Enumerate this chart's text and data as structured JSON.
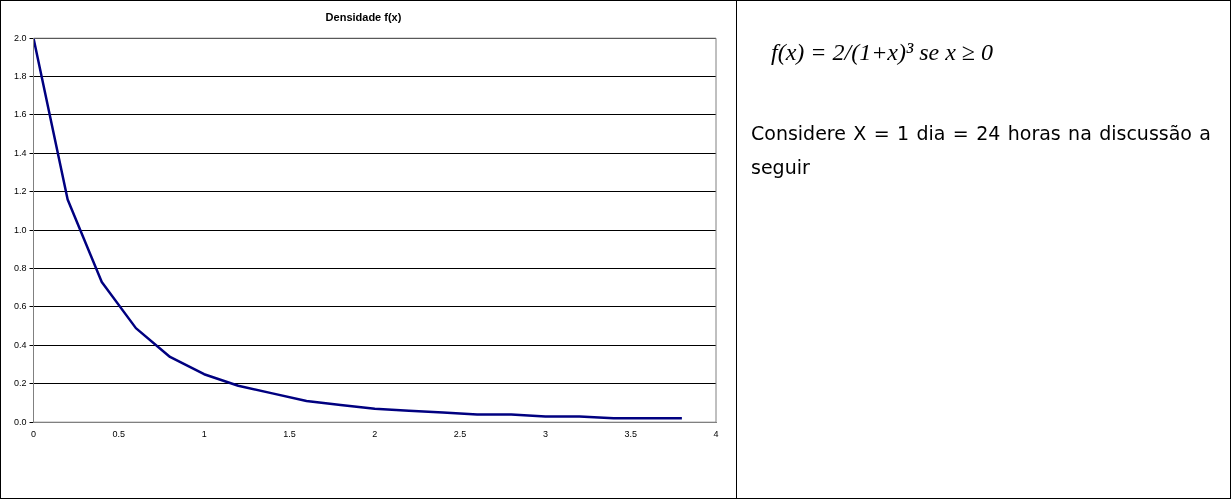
{
  "chart_data": {
    "type": "line",
    "title": "Densidade f(x)",
    "x": [
      0,
      0.2,
      0.4,
      0.6,
      0.8,
      1.0,
      1.2,
      1.4,
      1.6,
      1.8,
      2.0,
      2.2,
      2.4,
      2.6,
      2.8,
      3.0,
      3.2,
      3.4,
      3.6,
      3.8
    ],
    "series": [
      {
        "color": "#000080",
        "values": [
          2.0,
          1.16,
          0.73,
          0.49,
          0.34,
          0.25,
          0.19,
          0.15,
          0.11,
          0.09,
          0.07,
          0.06,
          0.05,
          0.04,
          0.04,
          0.03,
          0.03,
          0.02,
          0.02,
          0.02
        ]
      }
    ],
    "xlim": [
      0,
      4
    ],
    "xticks": [
      0,
      0.5,
      1,
      1.5,
      2,
      2.5,
      3,
      3.5,
      4
    ],
    "ylim": [
      0,
      2
    ],
    "yticks": [
      {
        "value": 0,
        "label": "0.0"
      },
      {
        "value": 0.2,
        "label": "0.2"
      },
      {
        "value": 0.4,
        "label": "0.4"
      },
      {
        "value": 0.6,
        "label": "0.6"
      },
      {
        "value": 0.8,
        "label": "0.8"
      },
      {
        "value": 1,
        "label": "1.0"
      },
      {
        "value": 1.2,
        "label": "1.2"
      },
      {
        "value": 1.4,
        "label": "1.4"
      },
      {
        "value": 1.6,
        "label": "1.6"
      },
      {
        "value": 1.8,
        "label": "1.8"
      },
      {
        "value": 2,
        "label": "2.0"
      }
    ],
    "grid": "y",
    "legend": false,
    "marker": "none",
    "line_style": "solid",
    "annotations": [
      "f(x) = 2/(1+x)³ se x ≥ 0",
      "Considere X = 1 dia = 24 horas na discussão a seguir"
    ]
  }
}
